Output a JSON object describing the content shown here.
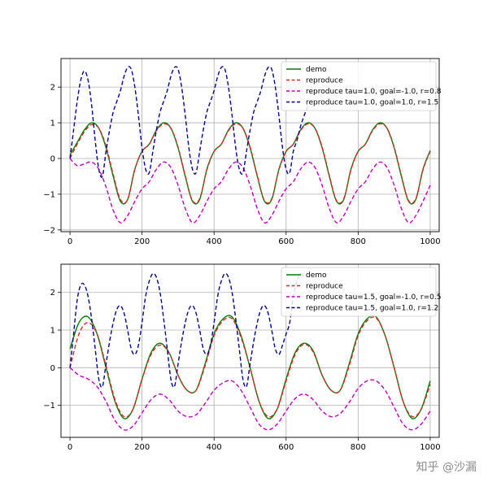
{
  "watermark": "知乎 @沙漏",
  "chart_data": [
    {
      "type": "line",
      "grid": true,
      "legend_position": "top-right",
      "xlim": [
        -25,
        1025
      ],
      "ylim": [
        -2.05,
        2.8
      ],
      "xticks": [
        0,
        200,
        400,
        600,
        800,
        1000
      ],
      "yticks": [
        -2,
        -1,
        0,
        1,
        2
      ],
      "series": [
        {
          "name": "demo",
          "color": "#008000",
          "style": "solid",
          "x": [
            0,
            20,
            40,
            60,
            80,
            100,
            120,
            140,
            160,
            180,
            200,
            220,
            240,
            260,
            280,
            300,
            320,
            340,
            360,
            380,
            400,
            420,
            440,
            460,
            480,
            500,
            520,
            540,
            560,
            580,
            600,
            620,
            640,
            660,
            680,
            700,
            720,
            740,
            760,
            780,
            800,
            820,
            840,
            860,
            880,
            900,
            920,
            940,
            960,
            980,
            1000
          ],
          "y": [
            0.1,
            0.45,
            0.8,
            1.0,
            0.85,
            0.3,
            -0.5,
            -1.2,
            -1.15,
            -0.3,
            0.2,
            0.4,
            0.8,
            1.0,
            0.85,
            0.3,
            -0.5,
            -1.2,
            -1.15,
            -0.3,
            0.2,
            0.4,
            0.8,
            1.0,
            0.85,
            0.3,
            -0.5,
            -1.2,
            -1.15,
            -0.3,
            0.2,
            0.4,
            0.8,
            1.0,
            0.85,
            0.3,
            -0.5,
            -1.2,
            -1.15,
            -0.3,
            0.2,
            0.4,
            0.8,
            1.0,
            0.85,
            0.3,
            -0.5,
            -1.2,
            -1.15,
            -0.3,
            0.22
          ]
        },
        {
          "name": "reproduce",
          "color": "#d62728",
          "style": "dashed",
          "x": [
            0,
            20,
            40,
            60,
            80,
            100,
            120,
            140,
            160,
            180,
            200,
            220,
            240,
            260,
            280,
            300,
            320,
            340,
            360,
            380,
            400,
            420,
            440,
            460,
            480,
            500,
            520,
            540,
            560,
            580,
            600,
            620,
            640,
            660,
            680,
            700,
            720,
            740,
            760,
            780,
            800,
            820,
            840,
            860,
            880,
            900,
            920,
            940,
            960,
            980,
            1000
          ],
          "y": [
            0.0,
            0.4,
            0.75,
            0.95,
            0.85,
            0.35,
            -0.45,
            -1.15,
            -1.15,
            -0.3,
            0.2,
            0.4,
            0.78,
            0.97,
            0.85,
            0.32,
            -0.48,
            -1.18,
            -1.13,
            -0.32,
            0.2,
            0.4,
            0.78,
            0.97,
            0.85,
            0.32,
            -0.48,
            -1.18,
            -1.13,
            -0.32,
            0.2,
            0.4,
            0.78,
            0.97,
            0.85,
            0.32,
            -0.48,
            -1.18,
            -1.13,
            -0.32,
            0.2,
            0.4,
            0.78,
            0.97,
            0.85,
            0.32,
            -0.48,
            -1.18,
            -1.13,
            -0.32,
            0.2
          ]
        },
        {
          "name": "reproduce tau=1.0, goal=-1.0, r=0.8",
          "color": "#bf00bf",
          "style": "dashed",
          "x": [
            0,
            20,
            40,
            60,
            80,
            100,
            120,
            140,
            160,
            180,
            200,
            220,
            240,
            260,
            280,
            300,
            320,
            340,
            360,
            380,
            400,
            420,
            440,
            460,
            480,
            500,
            520,
            540,
            560,
            580,
            600,
            620,
            640,
            660,
            680,
            700,
            720,
            740,
            760,
            780,
            800,
            820,
            840,
            860,
            880,
            900,
            920,
            940,
            960,
            980,
            1000
          ],
          "y": [
            0.0,
            -0.2,
            -0.15,
            -0.1,
            -0.3,
            -0.8,
            -1.45,
            -1.8,
            -1.6,
            -1.2,
            -0.85,
            -0.65,
            -0.3,
            -0.1,
            -0.25,
            -0.75,
            -1.4,
            -1.8,
            -1.6,
            -1.2,
            -0.85,
            -0.65,
            -0.3,
            -0.1,
            -0.25,
            -0.75,
            -1.4,
            -1.8,
            -1.6,
            -1.2,
            -0.85,
            -0.65,
            -0.3,
            -0.1,
            -0.25,
            -0.75,
            -1.4,
            -1.8,
            -1.6,
            -1.2,
            -0.85,
            -0.65,
            -0.3,
            -0.1,
            -0.25,
            -0.75,
            -1.4,
            -1.8,
            -1.6,
            -1.2,
            -0.75
          ]
        },
        {
          "name": "reproduce tau=1.0, goal=1.0, r=1.5",
          "color": "#00008b",
          "style": "dashed",
          "x": [
            0,
            10,
            20,
            30,
            40,
            50,
            60,
            70,
            80,
            90,
            100,
            110,
            120,
            130,
            140,
            150,
            160,
            170,
            180,
            190,
            200,
            210,
            220,
            230,
            240,
            250,
            260,
            270,
            280,
            290,
            300,
            310,
            320,
            330,
            340,
            350,
            360,
            370,
            380,
            390,
            400,
            410,
            420,
            430,
            440,
            450,
            460,
            470,
            480,
            490,
            500,
            510,
            520,
            530,
            540,
            550,
            560,
            570,
            580,
            590,
            600,
            610,
            620,
            630,
            640,
            650,
            660
          ],
          "y": [
            0.0,
            0.8,
            1.6,
            2.2,
            2.45,
            2.2,
            1.5,
            0.5,
            -0.3,
            -0.5,
            0.2,
            0.8,
            1.3,
            1.6,
            1.9,
            2.3,
            2.55,
            2.5,
            2.0,
            1.2,
            0.3,
            -0.3,
            -0.4,
            0.2,
            0.8,
            1.3,
            1.6,
            1.9,
            2.3,
            2.55,
            2.5,
            2.0,
            1.2,
            0.3,
            -0.3,
            -0.4,
            0.2,
            0.8,
            1.3,
            1.6,
            1.9,
            2.3,
            2.55,
            2.5,
            2.0,
            1.2,
            0.3,
            -0.3,
            -0.4,
            0.2,
            0.8,
            1.3,
            1.6,
            1.9,
            2.3,
            2.55,
            2.5,
            2.0,
            1.2,
            0.3,
            -0.3,
            -0.4,
            0.2,
            0.5,
            0.9,
            1.2,
            1.45
          ]
        }
      ]
    },
    {
      "type": "line",
      "grid": true,
      "legend_position": "top-right",
      "xlim": [
        -25,
        1025
      ],
      "ylim": [
        -1.85,
        2.75
      ],
      "xticks": [
        0,
        200,
        400,
        600,
        800,
        1000
      ],
      "yticks": [
        -1,
        0,
        1,
        2
      ],
      "series": [
        {
          "name": "demo",
          "color": "#008000",
          "style": "solid",
          "x": [
            0,
            25,
            50,
            75,
            100,
            125,
            150,
            175,
            200,
            225,
            250,
            275,
            300,
            325,
            350,
            375,
            400,
            425,
            450,
            475,
            500,
            525,
            550,
            575,
            600,
            625,
            650,
            675,
            700,
            725,
            750,
            775,
            800,
            825,
            850,
            875,
            900,
            925,
            950,
            975,
            1000
          ],
          "y": [
            0.5,
            1.2,
            1.35,
            0.9,
            0.0,
            -0.9,
            -1.35,
            -1.1,
            -0.3,
            0.4,
            0.65,
            0.4,
            -0.2,
            -0.6,
            -0.6,
            0.1,
            0.9,
            1.3,
            1.35,
            0.85,
            0.0,
            -0.9,
            -1.35,
            -1.1,
            -0.3,
            0.4,
            0.65,
            0.45,
            -0.2,
            -0.6,
            -0.6,
            0.1,
            0.9,
            1.3,
            1.35,
            0.85,
            0.0,
            -0.9,
            -1.35,
            -1.1,
            -0.35
          ]
        },
        {
          "name": "reproduce",
          "color": "#d62728",
          "style": "dashed",
          "x": [
            0,
            25,
            50,
            75,
            100,
            125,
            150,
            175,
            200,
            225,
            250,
            275,
            300,
            325,
            350,
            375,
            400,
            425,
            450,
            475,
            500,
            525,
            550,
            575,
            600,
            625,
            650,
            675,
            700,
            725,
            750,
            775,
            800,
            825,
            850,
            875,
            900,
            925,
            950,
            975,
            1000
          ],
          "y": [
            0.0,
            0.9,
            1.2,
            0.9,
            0.05,
            -0.85,
            -1.3,
            -1.1,
            -0.3,
            0.35,
            0.6,
            0.4,
            -0.2,
            -0.6,
            -0.6,
            0.05,
            0.85,
            1.25,
            1.3,
            0.8,
            0.0,
            -0.9,
            -1.3,
            -1.1,
            -0.35,
            0.35,
            0.62,
            0.42,
            -0.2,
            -0.6,
            -0.6,
            0.05,
            0.85,
            1.25,
            1.32,
            0.85,
            0.0,
            -0.9,
            -1.3,
            -1.1,
            -0.45
          ]
        },
        {
          "name": "reproduce tau=1.5, goal=-1.0, r=0.5",
          "color": "#bf00bf",
          "style": "dashed",
          "x": [
            0,
            25,
            50,
            75,
            100,
            125,
            150,
            175,
            200,
            225,
            250,
            275,
            300,
            325,
            350,
            375,
            400,
            425,
            450,
            475,
            500,
            525,
            550,
            575,
            600,
            625,
            650,
            675,
            700,
            725,
            750,
            775,
            800,
            825,
            850,
            875,
            900,
            925,
            950,
            975,
            1000
          ],
          "y": [
            0.0,
            -0.2,
            -0.3,
            -0.5,
            -0.9,
            -1.4,
            -1.65,
            -1.55,
            -1.2,
            -0.85,
            -0.7,
            -0.85,
            -1.15,
            -1.3,
            -1.25,
            -0.95,
            -0.6,
            -0.4,
            -0.35,
            -0.6,
            -1.05,
            -1.5,
            -1.65,
            -1.5,
            -1.15,
            -0.82,
            -0.7,
            -0.85,
            -1.15,
            -1.3,
            -1.22,
            -0.92,
            -0.55,
            -0.35,
            -0.35,
            -0.6,
            -1.05,
            -1.5,
            -1.65,
            -1.5,
            -1.15
          ]
        },
        {
          "name": "reproduce tau=1.5, goal=1.0, r=1.2",
          "color": "#00008b",
          "style": "dashed",
          "x": [
            0,
            10,
            20,
            30,
            40,
            50,
            60,
            70,
            80,
            90,
            100,
            110,
            120,
            130,
            140,
            150,
            160,
            170,
            180,
            190,
            200,
            210,
            220,
            230,
            240,
            250,
            260,
            270,
            280,
            290,
            300,
            310,
            320,
            330,
            340,
            350,
            360,
            370,
            380,
            390,
            400,
            410,
            420,
            430,
            440,
            450,
            460,
            470,
            480,
            490,
            500,
            510,
            520,
            530,
            540,
            550,
            560,
            570,
            580,
            590,
            600,
            610,
            620,
            630,
            640,
            650
          ],
          "y": [
            0.0,
            0.9,
            1.8,
            2.2,
            2.2,
            1.9,
            1.3,
            0.5,
            -0.3,
            -0.5,
            0.1,
            0.7,
            1.2,
            1.55,
            1.65,
            1.45,
            1.0,
            0.5,
            0.35,
            0.6,
            1.2,
            1.9,
            2.3,
            2.5,
            2.4,
            2.0,
            1.3,
            0.5,
            -0.3,
            -0.5,
            0.1,
            0.7,
            1.2,
            1.55,
            1.65,
            1.45,
            1.0,
            0.5,
            0.35,
            0.6,
            1.2,
            1.9,
            2.3,
            2.5,
            2.4,
            2.0,
            1.3,
            0.5,
            -0.3,
            -0.5,
            0.1,
            0.7,
            1.2,
            1.55,
            1.65,
            1.45,
            1.0,
            0.5,
            0.35,
            0.6,
            0.9,
            1.2,
            1.9,
            2.3,
            2.5,
            2.4
          ]
        }
      ]
    }
  ]
}
